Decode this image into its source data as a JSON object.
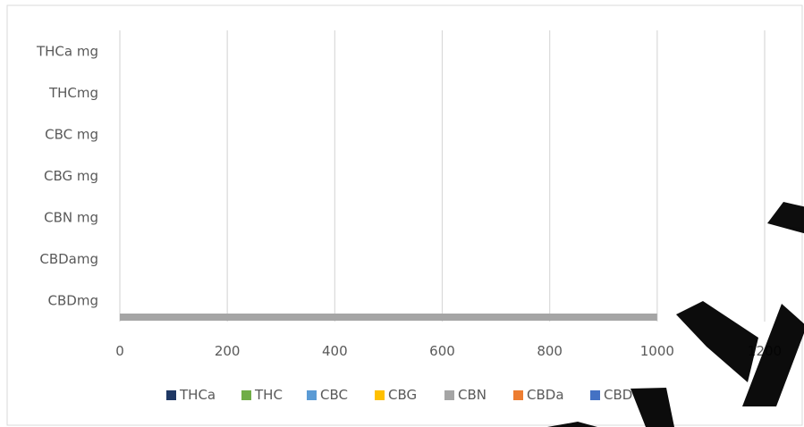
{
  "chart_data": {
    "type": "bar",
    "orientation": "horizontal",
    "categories": [
      "THCa mg",
      "THCmg",
      "CBC  mg",
      "CBG  mg",
      "CBN  mg",
      "CBDamg",
      "CBDmg"
    ],
    "xlim": [
      0,
      1200
    ],
    "xticks": [
      0,
      200,
      400,
      600,
      800,
      1000,
      1200
    ],
    "grid": true,
    "legend_position": "bottom",
    "series": [
      {
        "name": "THCa",
        "color": "#1F3864",
        "values": [
          0,
          0,
          0,
          0,
          0,
          0,
          0
        ]
      },
      {
        "name": "THC",
        "color": "#70AD47",
        "values": [
          0,
          0,
          0,
          0,
          0,
          0,
          0
        ]
      },
      {
        "name": "CBC",
        "color": "#5B9BD5",
        "values": [
          0,
          0,
          0,
          0,
          0,
          0,
          0
        ]
      },
      {
        "name": "CBG",
        "color": "#FFC000",
        "values": [
          0,
          0,
          0,
          0,
          0,
          0,
          0
        ]
      },
      {
        "name": "CBN",
        "color": "#A5A5A5",
        "values": [
          0,
          0,
          0,
          0,
          0,
          0,
          1000
        ]
      },
      {
        "name": "CBDa",
        "color": "#ED7D31",
        "values": [
          0,
          0,
          0,
          0,
          0,
          0,
          0
        ]
      },
      {
        "name": "CBD",
        "color": "#4472C4",
        "values": [
          0,
          0,
          0,
          0,
          0,
          0,
          0
        ]
      }
    ]
  }
}
